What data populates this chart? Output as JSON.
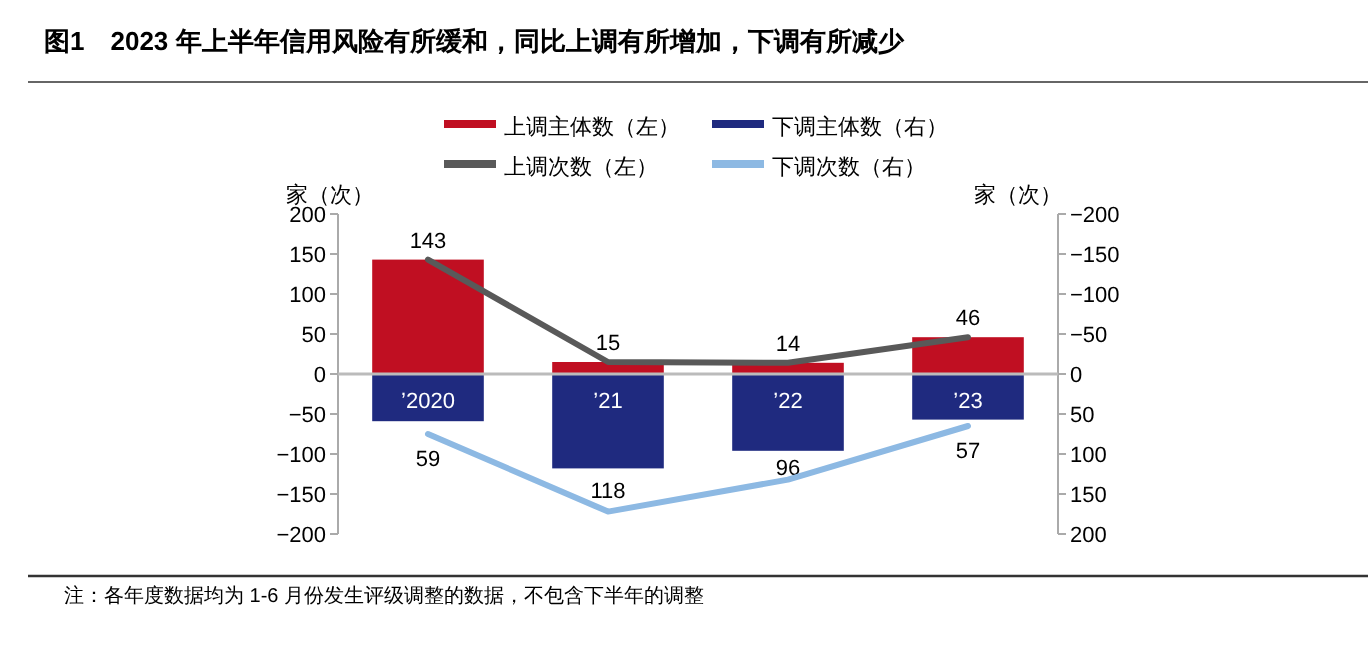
{
  "chart_data": {
    "type": "bar",
    "title": "图1　2023 年上半年信用风险有所缓和，同比上调有所增加，下调有所减少",
    "categories": [
      "’2020",
      "’21",
      "’22",
      "’23"
    ],
    "stacked": true,
    "ylabel": "家（次）",
    "y2label": "家（次）",
    "ylim": [
      -200,
      200
    ],
    "yticks": [
      -200,
      -150,
      -100,
      -50,
      0,
      50,
      100,
      150,
      200
    ],
    "y2lim": [
      200,
      -200
    ],
    "y2ticks": [
      -200,
      -150,
      -100,
      -50,
      0,
      50,
      100,
      150,
      200
    ],
    "legend": "top",
    "grid": false,
    "series": [
      {
        "name": "上调主体数（左）",
        "color": "#c00f22",
        "values": [
          143,
          15,
          14,
          46
        ],
        "value_labels": [
          "143",
          "15",
          "14",
          "46"
        ]
      },
      {
        "name": "下调主体数（右）",
        "axis": "y2",
        "color": "#1f2a7f",
        "values": [
          59,
          118,
          96,
          57
        ],
        "value_labels": [
          "59",
          "118",
          "96",
          "57"
        ]
      },
      {
        "name": "上调次数（左）",
        "type": "line",
        "color": "#595959",
        "values": [
          143,
          15,
          14,
          46
        ]
      },
      {
        "name": "下调次数（右）",
        "type": "line",
        "axis": "y2",
        "color": "#8db9e3",
        "values": [
          75,
          172,
          132,
          65
        ]
      }
    ],
    "annotations": [
      "注：各年度数据均为 1-6 月份发生评级调整的数据，不包含下半年的调整"
    ]
  }
}
